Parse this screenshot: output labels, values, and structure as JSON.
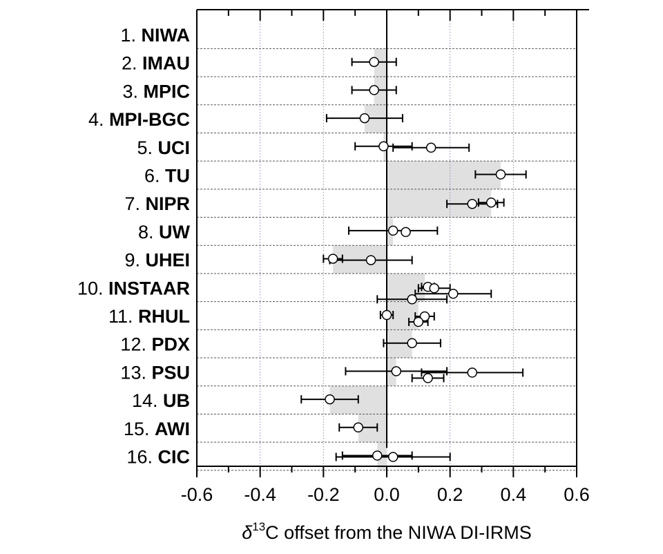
{
  "chart_data": {
    "type": "scatter",
    "orientation": "horizontal-offsets-with-error-bars",
    "title": "",
    "xlabel": {
      "delta": "δ",
      "superscript": "13",
      "rest": "C offset from the NIWA DI-IRMS"
    },
    "ylabel": "",
    "xlim": [
      -0.6,
      0.6
    ],
    "xticks": [
      -0.6,
      -0.4,
      -0.2,
      0.0,
      0.2,
      0.4,
      0.6
    ],
    "xtick_labels": [
      "-0.6",
      "-0.4",
      "-0.2",
      "0.0",
      "0.2",
      "0.4",
      "0.6"
    ],
    "grid": {
      "vertical": "dotted-blue",
      "horizontal": "dashed-gray"
    },
    "colors": {
      "bar": "#e0e0e0",
      "vgrid": "#8888cc",
      "hgrid": "#555555",
      "axis": "#000000",
      "marker_fill": "#ffffff"
    },
    "labs": [
      {
        "num": "1.",
        "name": "NIWA",
        "bar": 0.0,
        "points": []
      },
      {
        "num": "2.",
        "name": "IMAU",
        "bar": -0.04,
        "points": [
          {
            "x": -0.04,
            "lo": -0.11,
            "hi": 0.03,
            "sub": 0
          }
        ]
      },
      {
        "num": "3.",
        "name": "MPIC",
        "bar": -0.04,
        "points": [
          {
            "x": -0.04,
            "lo": -0.11,
            "hi": 0.03,
            "sub": 0
          }
        ]
      },
      {
        "num": "4.",
        "name": "MPI-BGC",
        "bar": -0.07,
        "points": [
          {
            "x": -0.07,
            "lo": -0.19,
            "hi": 0.05,
            "sub": 0
          }
        ]
      },
      {
        "num": "5.",
        "name": "UCI",
        "bar": -0.01,
        "points": [
          {
            "x": -0.01,
            "lo": -0.1,
            "hi": 0.08,
            "sub": 0
          },
          {
            "x": 0.14,
            "lo": 0.02,
            "hi": 0.26,
            "sub": 1
          }
        ]
      },
      {
        "num": "6.",
        "name": "TU",
        "bar": 0.36,
        "points": [
          {
            "x": 0.36,
            "lo": 0.28,
            "hi": 0.44,
            "sub": 0
          }
        ]
      },
      {
        "num": "7.",
        "name": "NIPR",
        "bar": 0.33,
        "points": [
          {
            "x": 0.33,
            "lo": 0.29,
            "hi": 0.37,
            "sub": 0
          },
          {
            "x": 0.27,
            "lo": 0.19,
            "hi": 0.35,
            "sub": 1
          }
        ]
      },
      {
        "num": "8.",
        "name": "UW",
        "bar": 0.02,
        "points": [
          {
            "x": 0.02,
            "lo": -0.12,
            "hi": 0.16,
            "sub": 0
          },
          {
            "x": 0.06,
            "sub": 1
          }
        ]
      },
      {
        "num": "9.",
        "name": "UHEI",
        "bar": -0.17,
        "points": [
          {
            "x": -0.17,
            "lo": -0.2,
            "hi": -0.14,
            "sub": 0
          },
          {
            "x": -0.05,
            "lo": -0.18,
            "hi": 0.08,
            "sub": 1
          }
        ]
      },
      {
        "num": "10.",
        "name": "INSTAAR",
        "bar": 0.12,
        "points": [
          {
            "x": 0.13,
            "lo": 0.11,
            "hi": 0.15,
            "sub": 0
          },
          {
            "x": 0.15,
            "lo": 0.1,
            "hi": 0.2,
            "sub": 1
          },
          {
            "x": 0.21,
            "lo": 0.09,
            "hi": 0.33,
            "sub": 2
          },
          {
            "x": 0.08,
            "lo": -0.03,
            "hi": 0.19,
            "sub": 3
          }
        ]
      },
      {
        "num": "11.",
        "name": "RHUL",
        "bar": 0.1,
        "points": [
          {
            "x": 0.0,
            "lo": -0.02,
            "hi": 0.02,
            "sub": 0
          },
          {
            "x": 0.12,
            "lo": 0.09,
            "hi": 0.15,
            "sub": 1
          },
          {
            "x": 0.1,
            "lo": 0.07,
            "hi": 0.13,
            "sub": 2
          }
        ]
      },
      {
        "num": "12.",
        "name": "PDX",
        "bar": 0.08,
        "points": [
          {
            "x": 0.08,
            "lo": -0.01,
            "hi": 0.17,
            "sub": 0
          }
        ]
      },
      {
        "num": "13.",
        "name": "PSU",
        "bar": 0.03,
        "points": [
          {
            "x": 0.03,
            "lo": -0.13,
            "hi": 0.19,
            "sub": 0
          },
          {
            "x": 0.27,
            "lo": 0.11,
            "hi": 0.43,
            "sub": 1
          },
          {
            "x": 0.13,
            "lo": 0.08,
            "hi": 0.18,
            "sub": 2
          }
        ]
      },
      {
        "num": "14.",
        "name": "UB",
        "bar": -0.18,
        "points": [
          {
            "x": -0.18,
            "lo": -0.27,
            "hi": -0.09,
            "sub": 0
          }
        ]
      },
      {
        "num": "15.",
        "name": "AWI",
        "bar": -0.09,
        "points": [
          {
            "x": -0.09,
            "lo": -0.15,
            "hi": -0.03,
            "sub": 0
          }
        ]
      },
      {
        "num": "16.",
        "name": "CIC",
        "bar": -0.03,
        "points": [
          {
            "x": -0.03,
            "lo": -0.14,
            "hi": 0.08,
            "sub": 0
          },
          {
            "x": 0.02,
            "lo": -0.16,
            "hi": 0.2,
            "sub": 1
          }
        ]
      }
    ]
  }
}
